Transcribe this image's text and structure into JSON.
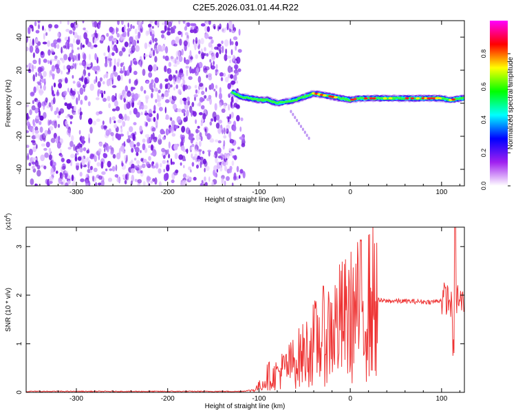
{
  "title": "C2E5.2026.031.01.44.R22",
  "chart_data": [
    {
      "type": "heatmap",
      "xlabel": "Height of straight line (km)",
      "ylabel": "Frequency (Hz)",
      "xlim": [
        -355,
        125
      ],
      "ylim": [
        -50,
        50
      ],
      "xticks": [
        -300,
        -200,
        -100,
        0,
        100
      ],
      "yticks": [
        -40,
        -20,
        0,
        20,
        40
      ],
      "noise_region_x": [
        -355,
        -125
      ],
      "signal_trace": {
        "x": [
          -130,
          -120,
          -110,
          -100,
          -90,
          -80,
          -70,
          -60,
          -50,
          -40,
          -30,
          -20,
          -10,
          0,
          10,
          20,
          40,
          60,
          80,
          100,
          110,
          120
        ],
        "freq_hz": [
          7,
          4,
          3,
          2,
          2,
          0,
          1,
          2,
          4,
          6,
          5,
          4,
          3,
          2,
          3,
          3,
          3,
          3,
          3,
          3,
          2,
          3
        ]
      },
      "colorbar": {
        "label": "Normalized spectral amplitude",
        "range": [
          0.0,
          1.0
        ],
        "ticks": [
          "0.0",
          "0.2",
          "0.4",
          "0.6",
          "0.8"
        ],
        "colors": [
          "#ffffff",
          "#a020f0",
          "#0000ff",
          "#00ffff",
          "#00ff00",
          "#ffff00",
          "#ff0000",
          "#ff00ff"
        ]
      }
    },
    {
      "type": "line",
      "xlabel": "Height of straight line (km)",
      "ylabel": "SNR (10 * v/v)",
      "scale_label": "(x10^4)",
      "scale_base": "(x10",
      "scale_exp": "4",
      "scale_close": ")",
      "xlim": [
        -355,
        125
      ],
      "ylim": [
        0,
        3.4
      ],
      "xticks": [
        -300,
        -200,
        -100,
        0,
        100
      ],
      "yticks": [
        0,
        1,
        2,
        3
      ],
      "series_color": "#ee3333",
      "series": [
        {
          "name": "SNR",
          "x": [
            -355,
            -300,
            -200,
            -120,
            -105,
            -95,
            -90,
            -85,
            -80,
            -70,
            -60,
            -50,
            -40,
            -30,
            -20,
            -10,
            0,
            10,
            20,
            30,
            35,
            50,
            70,
            90,
            100,
            105,
            110,
            112,
            115,
            117,
            120,
            125
          ],
          "y": [
            0.02,
            0.02,
            0.02,
            0.02,
            0.05,
            0.2,
            0.35,
            0.3,
            0.4,
            0.5,
            0.65,
            0.8,
            1.0,
            1.15,
            1.3,
            1.45,
            1.55,
            1.7,
            1.8,
            1.9,
            1.88,
            1.88,
            1.87,
            1.86,
            1.9,
            1.95,
            1.85,
            1.5,
            1.4,
            2.0,
            1.85,
            1.85
          ]
        }
      ]
    }
  ]
}
